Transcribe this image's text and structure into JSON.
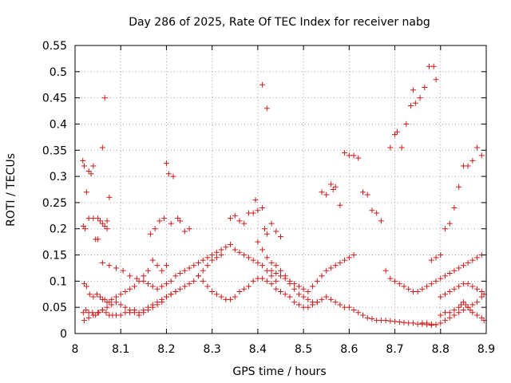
{
  "chart_data": {
    "type": "scatter",
    "title": "Day 286 of 2025, Rate Of TEC Index for receiver nabg",
    "xlabel": "GPS time / hours",
    "ylabel": "ROTI / TECUs",
    "xlim": [
      8.0,
      8.9
    ],
    "ylim": [
      0.0,
      0.55
    ],
    "xticks": [
      "8",
      "8.1",
      "8.2",
      "8.3",
      "8.4",
      "8.5",
      "8.6",
      "8.7",
      "8.8",
      "8.9"
    ],
    "yticks": [
      "0",
      "0.05",
      "0.1",
      "0.15",
      "0.2",
      "0.25",
      "0.3",
      "0.35",
      "0.4",
      "0.45",
      "0.5",
      "0.55"
    ],
    "grid": true,
    "marker": "+",
    "colors": {
      "series": "#cc1b1b",
      "grid": "#a0a0a0",
      "axis": "#000000"
    },
    "series": [
      {
        "name": "ROTI",
        "x": [
          8.017,
          8.02,
          8.025,
          8.03,
          8.035,
          8.04,
          8.045,
          8.05,
          8.055,
          8.06,
          8.065,
          8.07,
          8.075,
          8.018,
          8.022,
          8.03,
          8.04,
          8.05,
          8.06,
          8.07,
          8.02,
          8.025,
          8.032,
          8.04,
          8.048,
          8.055,
          8.06,
          8.065,
          8.07,
          8.075,
          8.08,
          8.09,
          8.1,
          8.11,
          8.12,
          8.13,
          8.14,
          8.15,
          8.16,
          8.17,
          8.18,
          8.19,
          8.2,
          8.018,
          8.024,
          8.03,
          8.038,
          8.045,
          8.052,
          8.06,
          8.068,
          8.075,
          8.082,
          8.09,
          8.1,
          8.11,
          8.12,
          8.13,
          8.14,
          8.15,
          8.16,
          8.17,
          8.18,
          8.19,
          8.2,
          8.21,
          8.22,
          8.02,
          8.03,
          8.04,
          8.05,
          8.06,
          8.07,
          8.08,
          8.09,
          8.1,
          8.11,
          8.12,
          8.13,
          8.14,
          8.15,
          8.16,
          8.17,
          8.18,
          8.19,
          8.2,
          8.21,
          8.22,
          8.23,
          8.24,
          8.25,
          8.26,
          8.27,
          8.28,
          8.29,
          8.3,
          8.31,
          8.32,
          8.06,
          8.075,
          8.09,
          8.105,
          8.12,
          8.135,
          8.15,
          8.16,
          8.17,
          8.18,
          8.19,
          8.2,
          8.21,
          8.22,
          8.23,
          8.24,
          8.25,
          8.26,
          8.27,
          8.28,
          8.29,
          8.3,
          8.31,
          8.32,
          8.33,
          8.34,
          8.35,
          8.36,
          8.37,
          8.38,
          8.39,
          8.4,
          8.41,
          8.42,
          8.43,
          8.44,
          8.2,
          8.205,
          8.21,
          8.215,
          8.225,
          8.23,
          8.24,
          8.25,
          8.165,
          8.175,
          8.185,
          8.195,
          8.27,
          8.28,
          8.29,
          8.3,
          8.31,
          8.32,
          8.33,
          8.34,
          8.35,
          8.36,
          8.37,
          8.38,
          8.39,
          8.4,
          8.41,
          8.42,
          8.43,
          8.44,
          8.45,
          8.46,
          8.47,
          8.48,
          8.49,
          8.5,
          8.51,
          8.52,
          8.53,
          8.34,
          8.35,
          8.36,
          8.37,
          8.38,
          8.39,
          8.395,
          8.4,
          8.41,
          8.415,
          8.42,
          8.43,
          8.44,
          8.45,
          8.4,
          8.41,
          8.42,
          8.43,
          8.44,
          8.45,
          8.46,
          8.47,
          8.48,
          8.49,
          8.5,
          8.51,
          8.52,
          8.53,
          8.54,
          8.55,
          8.56,
          8.57,
          8.58,
          8.59,
          8.6,
          8.61,
          8.62,
          8.63,
          8.64,
          8.65,
          8.66,
          8.67,
          8.68,
          8.69,
          8.7,
          8.71,
          8.72,
          8.73,
          8.74,
          8.75,
          8.76,
          8.77,
          8.78,
          8.79,
          8.42,
          8.43,
          8.44,
          8.45,
          8.46,
          8.47,
          8.48,
          8.49,
          8.5,
          8.51,
          8.52,
          8.53,
          8.54,
          8.55,
          8.56,
          8.57,
          8.58,
          8.59,
          8.6,
          8.61,
          8.54,
          8.55,
          8.56,
          8.565,
          8.57,
          8.58,
          8.59,
          8.6,
          8.61,
          8.62,
          8.63,
          8.64,
          8.65,
          8.66,
          8.67,
          8.68,
          8.69,
          8.7,
          8.71,
          8.72,
          8.73,
          8.74,
          8.75,
          8.76,
          8.77,
          8.78,
          8.79,
          8.8,
          8.81,
          8.82,
          8.83,
          8.84,
          8.85,
          8.86,
          8.87,
          8.88,
          8.89,
          8.69,
          8.7,
          8.705,
          8.715,
          8.725,
          8.735,
          8.74,
          8.745,
          8.755,
          8.765,
          8.775,
          8.785,
          8.79,
          8.78,
          8.79,
          8.8,
          8.81,
          8.82,
          8.83,
          8.84,
          8.85,
          8.86,
          8.87,
          8.88,
          8.89,
          8.8,
          8.81,
          8.82,
          8.83,
          8.84,
          8.845,
          8.85,
          8.855,
          8.86,
          8.865,
          8.87,
          8.88,
          8.89,
          8.895,
          8.8,
          8.81,
          8.82,
          8.83,
          8.84,
          8.85,
          8.86,
          8.87,
          8.88,
          8.89,
          8.895,
          8.76,
          8.77,
          8.78,
          8.79,
          8.8,
          8.81,
          8.82,
          8.83,
          8.84,
          8.85,
          8.86,
          8.87,
          8.88,
          8.89,
          8.41,
          8.065
        ],
        "y": [
          0.33,
          0.32,
          0.27,
          0.31,
          0.305,
          0.32,
          0.18,
          0.22,
          0.215,
          0.21,
          0.205,
          0.2,
          0.26,
          0.205,
          0.2,
          0.22,
          0.22,
          0.18,
          0.355,
          0.215,
          0.095,
          0.09,
          0.075,
          0.07,
          0.075,
          0.07,
          0.065,
          0.065,
          0.06,
          0.06,
          0.065,
          0.07,
          0.075,
          0.08,
          0.085,
          0.09,
          0.1,
          0.11,
          0.12,
          0.14,
          0.13,
          0.12,
          0.13,
          0.04,
          0.045,
          0.04,
          0.04,
          0.035,
          0.04,
          0.045,
          0.04,
          0.035,
          0.035,
          0.035,
          0.035,
          0.04,
          0.04,
          0.045,
          0.04,
          0.045,
          0.05,
          0.055,
          0.06,
          0.065,
          0.07,
          0.075,
          0.08,
          0.025,
          0.03,
          0.035,
          0.04,
          0.045,
          0.05,
          0.055,
          0.06,
          0.055,
          0.05,
          0.045,
          0.04,
          0.035,
          0.04,
          0.045,
          0.05,
          0.055,
          0.06,
          0.07,
          0.075,
          0.08,
          0.085,
          0.09,
          0.095,
          0.1,
          0.11,
          0.12,
          0.13,
          0.14,
          0.145,
          0.15,
          0.135,
          0.13,
          0.125,
          0.12,
          0.11,
          0.105,
          0.1,
          0.095,
          0.09,
          0.085,
          0.09,
          0.095,
          0.1,
          0.11,
          0.115,
          0.12,
          0.125,
          0.13,
          0.135,
          0.14,
          0.145,
          0.15,
          0.155,
          0.16,
          0.165,
          0.17,
          0.16,
          0.155,
          0.15,
          0.145,
          0.14,
          0.135,
          0.13,
          0.12,
          0.11,
          0.1,
          0.325,
          0.305,
          0.21,
          0.3,
          0.22,
          0.215,
          0.195,
          0.2,
          0.19,
          0.2,
          0.215,
          0.22,
          0.11,
          0.1,
          0.09,
          0.08,
          0.075,
          0.07,
          0.065,
          0.065,
          0.07,
          0.08,
          0.085,
          0.09,
          0.1,
          0.105,
          0.105,
          0.1,
          0.095,
          0.085,
          0.08,
          0.075,
          0.07,
          0.06,
          0.055,
          0.05,
          0.05,
          0.055,
          0.06,
          0.22,
          0.225,
          0.215,
          0.21,
          0.23,
          0.23,
          0.255,
          0.235,
          0.24,
          0.2,
          0.19,
          0.21,
          0.195,
          0.185,
          0.175,
          0.16,
          0.145,
          0.135,
          0.13,
          0.12,
          0.11,
          0.095,
          0.085,
          0.075,
          0.07,
          0.065,
          0.06,
          0.06,
          0.065,
          0.07,
          0.065,
          0.06,
          0.055,
          0.05,
          0.05,
          0.045,
          0.04,
          0.035,
          0.03,
          0.028,
          0.025,
          0.025,
          0.025,
          0.024,
          0.023,
          0.022,
          0.021,
          0.02,
          0.02,
          0.018,
          0.018,
          0.017,
          0.016,
          0.017,
          0.43,
          0.12,
          0.115,
          0.11,
          0.105,
          0.1,
          0.095,
          0.09,
          0.085,
          0.08,
          0.09,
          0.1,
          0.11,
          0.12,
          0.125,
          0.13,
          0.135,
          0.14,
          0.145,
          0.15,
          0.27,
          0.265,
          0.285,
          0.275,
          0.28,
          0.245,
          0.345,
          0.34,
          0.34,
          0.335,
          0.27,
          0.265,
          0.235,
          0.23,
          0.215,
          0.12,
          0.105,
          0.1,
          0.095,
          0.09,
          0.085,
          0.08,
          0.08,
          0.085,
          0.09,
          0.095,
          0.1,
          0.105,
          0.11,
          0.115,
          0.12,
          0.125,
          0.13,
          0.135,
          0.14,
          0.145,
          0.15,
          0.355,
          0.38,
          0.385,
          0.355,
          0.4,
          0.435,
          0.465,
          0.44,
          0.45,
          0.47,
          0.51,
          0.51,
          0.485,
          0.14,
          0.145,
          0.15,
          0.2,
          0.21,
          0.24,
          0.28,
          0.32,
          0.32,
          0.33,
          0.355,
          0.34,
          0.035,
          0.04,
          0.04,
          0.045,
          0.05,
          0.055,
          0.06,
          0.055,
          0.05,
          0.045,
          0.04,
          0.035,
          0.03,
          0.025,
          0.07,
          0.075,
          0.08,
          0.085,
          0.09,
          0.095,
          0.095,
          0.09,
          0.085,
          0.08,
          0.075,
          0.02,
          0.02,
          0.018,
          0.017,
          0.02,
          0.025,
          0.03,
          0.035,
          0.04,
          0.045,
          0.05,
          0.055,
          0.06,
          0.07,
          0.475,
          0.45
        ]
      }
    ]
  }
}
